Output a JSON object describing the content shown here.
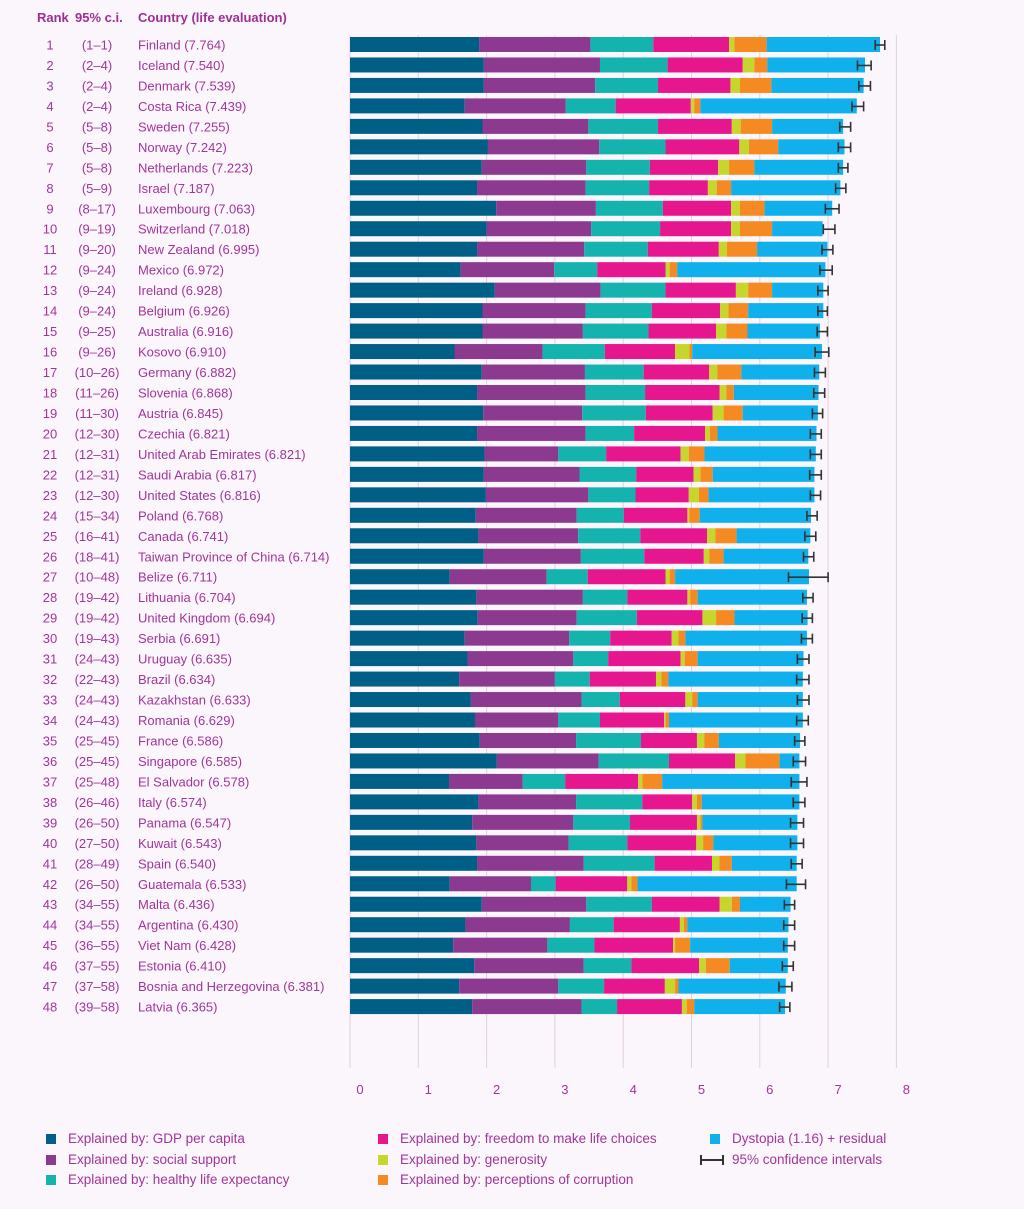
{
  "headers": {
    "rank": "Rank",
    "ci": "95% c.i.",
    "country": "Country (life evaluation)"
  },
  "colors": {
    "gdp": "#005f86",
    "social": "#8b3a8f",
    "health": "#14b3ad",
    "freedom": "#e6168f",
    "generosity": "#c6d62d",
    "corruption": "#f58a22",
    "dystopia": "#0fb0ec",
    "ci": "#333333"
  },
  "legend": [
    {
      "key": "gdp",
      "label": "Explained by: GDP per capita"
    },
    {
      "key": "social",
      "label": "Explained by: social support"
    },
    {
      "key": "health",
      "label": "Explained by: healthy life expectancy"
    },
    {
      "key": "freedom",
      "label": "Explained by: freedom to make life choices"
    },
    {
      "key": "generosity",
      "label": "Explained by: generosity"
    },
    {
      "key": "corruption",
      "label": "Explained by: perceptions of corruption"
    },
    {
      "key": "dystopia",
      "label": "Dystopia (1.16) + residual"
    },
    {
      "key": "ci",
      "label": "95% confidence intervals"
    }
  ],
  "chart_data": {
    "type": "bar",
    "orientation": "horizontal",
    "stacked": true,
    "xlim": [
      0,
      8
    ],
    "x_ticks": [
      "0",
      "1",
      "2",
      "3",
      "4",
      "5",
      "6",
      "7",
      "8"
    ],
    "series_order": [
      "gdp",
      "social",
      "health",
      "freedom",
      "generosity",
      "corruption",
      "dystopia"
    ],
    "rows": [
      {
        "rank": "1",
        "ci": "(1–1)",
        "country": "Finland (7.764)",
        "score": 7.764,
        "ci_low": 7.69,
        "ci_high": 7.83,
        "gdp": 1.89,
        "social": 1.63,
        "health": 0.92,
        "freedom": 1.11,
        "generosity": 0.08,
        "corruption": 0.47,
        "dystopia": 1.66
      },
      {
        "rank": "2",
        "ci": "(2–4)",
        "country": "Iceland (7.540)",
        "score": 7.54,
        "ci_low": 7.43,
        "ci_high": 7.63,
        "gdp": 1.96,
        "social": 1.7,
        "health": 0.99,
        "freedom": 1.1,
        "generosity": 0.17,
        "corruption": 0.19,
        "dystopia": 1.43
      },
      {
        "rank": "3",
        "ci": "(2–4)",
        "country": "Denmark (7.539)",
        "score": 7.539,
        "ci_low": 7.45,
        "ci_high": 7.62,
        "gdp": 1.96,
        "social": 1.63,
        "health": 0.92,
        "freedom": 1.06,
        "generosity": 0.14,
        "corruption": 0.46,
        "dystopia": 1.35
      },
      {
        "rank": "4",
        "ci": "(2–4)",
        "country": "Costa Rica (7.439)",
        "score": 7.439,
        "ci_low": 7.35,
        "ci_high": 7.52,
        "gdp": 1.68,
        "social": 1.48,
        "health": 0.73,
        "freedom": 1.1,
        "generosity": 0.05,
        "corruption": 0.09,
        "dystopia": 2.29
      },
      {
        "rank": "5",
        "ci": "(5–8)",
        "country": "Sweden (7.255)",
        "score": 7.255,
        "ci_low": 7.17,
        "ci_high": 7.33,
        "gdp": 1.94,
        "social": 1.55,
        "health": 1.02,
        "freedom": 1.08,
        "generosity": 0.13,
        "corruption": 0.46,
        "dystopia": 1.04
      },
      {
        "rank": "6",
        "ci": "(5–8)",
        "country": "Norway (7.242)",
        "score": 7.242,
        "ci_low": 7.15,
        "ci_high": 7.33,
        "gdp": 2.02,
        "social": 1.63,
        "health": 0.97,
        "freedom": 1.08,
        "generosity": 0.14,
        "corruption": 0.43,
        "dystopia": 0.97
      },
      {
        "rank": "7",
        "ci": "(5–8)",
        "country": "Netherlands (7.223)",
        "score": 7.223,
        "ci_low": 7.15,
        "ci_high": 7.29,
        "gdp": 1.93,
        "social": 1.53,
        "health": 0.93,
        "freedom": 1.0,
        "generosity": 0.16,
        "corruption": 0.37,
        "dystopia": 1.3
      },
      {
        "rank": "8",
        "ci": "(5–9)",
        "country": "Israel (7.187)",
        "score": 7.187,
        "ci_low": 7.11,
        "ci_high": 7.26,
        "gdp": 1.86,
        "social": 1.59,
        "health": 0.93,
        "freedom": 0.86,
        "generosity": 0.13,
        "corruption": 0.21,
        "dystopia": 1.6
      },
      {
        "rank": "9",
        "ci": "(8–17)",
        "country": "Luxembourg (7.063)",
        "score": 7.063,
        "ci_low": 6.96,
        "ci_high": 7.16,
        "gdp": 2.14,
        "social": 1.46,
        "health": 0.98,
        "freedom": 1.0,
        "generosity": 0.13,
        "corruption": 0.36,
        "dystopia": 0.99
      },
      {
        "rank": "10",
        "ci": "(9–19)",
        "country": "Switzerland (7.018)",
        "score": 7.018,
        "ci_low": 6.93,
        "ci_high": 7.1,
        "gdp": 2.0,
        "social": 1.53,
        "health": 1.01,
        "freedom": 1.04,
        "generosity": 0.13,
        "corruption": 0.47,
        "dystopia": 0.74
      },
      {
        "rank": "11",
        "ci": "(9–20)",
        "country": "New Zealand (6.995)",
        "score": 6.995,
        "ci_low": 6.91,
        "ci_high": 7.07,
        "gdp": 1.86,
        "social": 1.57,
        "health": 0.93,
        "freedom": 1.04,
        "generosity": 0.12,
        "corruption": 0.44,
        "dystopia": 1.03
      },
      {
        "rank": "12",
        "ci": "(9–24)",
        "country": "Mexico (6.972)",
        "score": 6.972,
        "ci_low": 6.88,
        "ci_high": 7.06,
        "gdp": 1.62,
        "social": 1.37,
        "health": 0.63,
        "freedom": 1.0,
        "generosity": 0.06,
        "corruption": 0.11,
        "dystopia": 2.17
      },
      {
        "rank": "13",
        "ci": "(9–24)",
        "country": "Ireland (6.928)",
        "score": 6.928,
        "ci_low": 6.85,
        "ci_high": 7.0,
        "gdp": 2.12,
        "social": 1.55,
        "health": 0.95,
        "freedom": 1.03,
        "generosity": 0.18,
        "corruption": 0.35,
        "dystopia": 0.75
      },
      {
        "rank": "14",
        "ci": "(9–24)",
        "country": "Belgium (6.926)",
        "score": 6.926,
        "ci_low": 6.85,
        "ci_high": 6.99,
        "gdp": 1.94,
        "social": 1.51,
        "health": 0.97,
        "freedom": 1.0,
        "generosity": 0.12,
        "corruption": 0.29,
        "dystopia": 1.1
      },
      {
        "rank": "15",
        "ci": "(9–25)",
        "country": "Australia (6.916)",
        "score": 6.916,
        "ci_low": 6.84,
        "ci_high": 6.99,
        "gdp": 1.94,
        "social": 1.47,
        "health": 0.96,
        "freedom": 0.99,
        "generosity": 0.15,
        "corruption": 0.31,
        "dystopia": 1.06
      },
      {
        "rank": "16",
        "ci": "(9–26)",
        "country": "Kosovo (6.910)",
        "score": 6.91,
        "ci_low": 6.81,
        "ci_high": 7.01,
        "gdp": 1.53,
        "social": 1.29,
        "health": 0.91,
        "freedom": 1.03,
        "generosity": 0.21,
        "corruption": 0.04,
        "dystopia": 1.9
      },
      {
        "rank": "17",
        "ci": "(10–26)",
        "country": "Germany (6.882)",
        "score": 6.882,
        "ci_low": 6.8,
        "ci_high": 6.96,
        "gdp": 1.93,
        "social": 1.51,
        "health": 0.86,
        "freedom": 0.96,
        "generosity": 0.12,
        "corruption": 0.35,
        "dystopia": 1.14
      },
      {
        "rank": "18",
        "ci": "(11–26)",
        "country": "Slovenia (6.868)",
        "score": 6.868,
        "ci_low": 6.79,
        "ci_high": 6.95,
        "gdp": 1.86,
        "social": 1.59,
        "health": 0.87,
        "freedom": 1.09,
        "generosity": 0.1,
        "corruption": 0.11,
        "dystopia": 1.24
      },
      {
        "rank": "19",
        "ci": "(11–30)",
        "country": "Austria (6.845)",
        "score": 6.845,
        "ci_low": 6.77,
        "ci_high": 6.92,
        "gdp": 1.95,
        "social": 1.45,
        "health": 0.93,
        "freedom": 0.98,
        "generosity": 0.16,
        "corruption": 0.28,
        "dystopia": 1.1
      },
      {
        "rank": "20",
        "ci": "(12–30)",
        "country": "Czechia (6.821)",
        "score": 6.821,
        "ci_low": 6.74,
        "ci_high": 6.9,
        "gdp": 1.86,
        "social": 1.59,
        "health": 0.71,
        "freedom": 1.04,
        "generosity": 0.07,
        "corruption": 0.11,
        "dystopia": 1.45
      },
      {
        "rank": "21",
        "ci": "(12–31)",
        "country": "United Arab Emirates (6.821)",
        "score": 6.821,
        "ci_low": 6.74,
        "ci_high": 6.9,
        "gdp": 1.97,
        "social": 1.08,
        "health": 0.7,
        "freedom": 1.09,
        "generosity": 0.12,
        "corruption": 0.23,
        "dystopia": 1.63
      },
      {
        "rank": "22",
        "ci": "(12–31)",
        "country": "Saudi Arabia (6.817)",
        "score": 6.817,
        "ci_low": 6.73,
        "ci_high": 6.9,
        "gdp": 1.96,
        "social": 1.4,
        "health": 0.83,
        "freedom": 0.84,
        "generosity": 0.1,
        "corruption": 0.18,
        "dystopia": 1.49
      },
      {
        "rank": "23",
        "ci": "(12–30)",
        "country": "United States (6.816)",
        "score": 6.816,
        "ci_low": 6.74,
        "ci_high": 6.89,
        "gdp": 1.99,
        "social": 1.5,
        "health": 0.69,
        "freedom": 0.78,
        "generosity": 0.15,
        "corruption": 0.14,
        "dystopia": 1.55
      },
      {
        "rank": "24",
        "ci": "(15–34)",
        "country": "Poland (6.768)",
        "score": 6.768,
        "ci_low": 6.69,
        "ci_high": 6.84,
        "gdp": 1.84,
        "social": 1.48,
        "health": 0.69,
        "freedom": 0.93,
        "generosity": 0.03,
        "corruption": 0.15,
        "dystopia": 1.63
      },
      {
        "rank": "25",
        "ci": "(16–41)",
        "country": "Canada (6.741)",
        "score": 6.741,
        "ci_low": 6.66,
        "ci_high": 6.82,
        "gdp": 1.88,
        "social": 1.46,
        "health": 0.91,
        "freedom": 0.98,
        "generosity": 0.12,
        "corruption": 0.31,
        "dystopia": 1.08
      },
      {
        "rank": "26",
        "ci": "(18–41)",
        "country": "Taiwan Province of China (6.714)",
        "score": 6.714,
        "ci_low": 6.64,
        "ci_high": 6.79,
        "gdp": 1.96,
        "social": 1.42,
        "health": 0.93,
        "freedom": 0.87,
        "generosity": 0.08,
        "corruption": 0.21,
        "dystopia": 1.24
      },
      {
        "rank": "27",
        "ci": "(10–48)",
        "country": "Belize (6.711)",
        "score": 6.711,
        "ci_low": 6.42,
        "ci_high": 7.0,
        "gdp": 1.46,
        "social": 1.42,
        "health": 0.6,
        "freedom": 1.14,
        "generosity": 0.06,
        "corruption": 0.08,
        "dystopia": 1.96
      },
      {
        "rank": "28",
        "ci": "(19–42)",
        "country": "Lithuania (6.704)",
        "score": 6.704,
        "ci_low": 6.63,
        "ci_high": 6.78,
        "gdp": 1.85,
        "social": 1.56,
        "health": 0.65,
        "freedom": 0.88,
        "generosity": 0.04,
        "corruption": 0.11,
        "dystopia": 1.6
      },
      {
        "rank": "29",
        "ci": "(19–42)",
        "country": "United Kingdom (6.694)",
        "score": 6.694,
        "ci_low": 6.62,
        "ci_high": 6.77,
        "gdp": 1.87,
        "social": 1.45,
        "health": 0.88,
        "freedom": 0.96,
        "generosity": 0.2,
        "corruption": 0.27,
        "dystopia": 1.07
      },
      {
        "rank": "30",
        "ci": "(19–43)",
        "country": "Serbia (6.691)",
        "score": 6.691,
        "ci_low": 6.61,
        "ci_high": 6.77,
        "gdp": 1.68,
        "social": 1.53,
        "health": 0.6,
        "freedom": 0.9,
        "generosity": 0.1,
        "corruption": 0.1,
        "dystopia": 1.78
      },
      {
        "rank": "31",
        "ci": "(24–43)",
        "country": "Uruguay (6.635)",
        "score": 6.635,
        "ci_low": 6.55,
        "ci_high": 6.72,
        "gdp": 1.72,
        "social": 1.55,
        "health": 0.51,
        "freedom": 1.06,
        "generosity": 0.06,
        "corruption": 0.19,
        "dystopia": 1.55
      },
      {
        "rank": "32",
        "ci": "(22–43)",
        "country": "Brazil (6.634)",
        "score": 6.634,
        "ci_low": 6.54,
        "ci_high": 6.72,
        "gdp": 1.6,
        "social": 1.4,
        "health": 0.51,
        "freedom": 0.97,
        "generosity": 0.08,
        "corruption": 0.1,
        "dystopia": 1.97
      },
      {
        "rank": "33",
        "ci": "(24–43)",
        "country": "Kazakhstan (6.633)",
        "score": 6.633,
        "ci_low": 6.55,
        "ci_high": 6.72,
        "gdp": 1.77,
        "social": 1.62,
        "health": 0.56,
        "freedom": 0.96,
        "generosity": 0.1,
        "corruption": 0.08,
        "dystopia": 1.54
      },
      {
        "rank": "34",
        "ci": "(24–43)",
        "country": "Romania (6.629)",
        "score": 6.629,
        "ci_low": 6.54,
        "ci_high": 6.71,
        "gdp": 1.83,
        "social": 1.22,
        "health": 0.61,
        "freedom": 0.94,
        "generosity": 0.02,
        "corruption": 0.05,
        "dystopia": 1.96
      },
      {
        "rank": "35",
        "ci": "(25–45)",
        "country": "France (6.586)",
        "score": 6.586,
        "ci_low": 6.51,
        "ci_high": 6.66,
        "gdp": 1.9,
        "social": 1.41,
        "health": 0.95,
        "freedom": 0.82,
        "generosity": 0.11,
        "corruption": 0.21,
        "dystopia": 1.19
      },
      {
        "rank": "36",
        "ci": "(25–45)",
        "country": "Singapore (6.585)",
        "score": 6.585,
        "ci_low": 6.49,
        "ci_high": 6.67,
        "gdp": 2.15,
        "social": 1.49,
        "health": 1.03,
        "freedom": 0.97,
        "generosity": 0.15,
        "corruption": 0.5,
        "dystopia": 0.29
      },
      {
        "rank": "37",
        "ci": "(25–48)",
        "country": "El Salvador (6.578)",
        "score": 6.578,
        "ci_low": 6.46,
        "ci_high": 6.69,
        "gdp": 1.45,
        "social": 1.08,
        "health": 0.62,
        "freedom": 1.07,
        "generosity": 0.06,
        "corruption": 0.29,
        "dystopia": 2.01
      },
      {
        "rank": "38",
        "ci": "(26–46)",
        "country": "Italy (6.574)",
        "score": 6.574,
        "ci_low": 6.49,
        "ci_high": 6.66,
        "gdp": 1.88,
        "social": 1.43,
        "health": 0.97,
        "freedom": 0.73,
        "generosity": 0.07,
        "corruption": 0.07,
        "dystopia": 1.43
      },
      {
        "rank": "39",
        "ci": "(26–50)",
        "country": "Panama (6.547)",
        "score": 6.547,
        "ci_low": 6.45,
        "ci_high": 6.64,
        "gdp": 1.79,
        "social": 1.48,
        "health": 0.83,
        "freedom": 0.98,
        "generosity": 0.05,
        "corruption": 0.03,
        "dystopia": 1.39
      },
      {
        "rank": "40",
        "ci": "(27–50)",
        "country": "Kuwait (6.543)",
        "score": 6.543,
        "ci_low": 6.45,
        "ci_high": 6.64,
        "gdp": 1.85,
        "social": 1.35,
        "health": 0.86,
        "freedom": 1.01,
        "generosity": 0.1,
        "corruption": 0.15,
        "dystopia": 1.23
      },
      {
        "rank": "41",
        "ci": "(28–49)",
        "country": "Spain (6.540)",
        "score": 6.54,
        "ci_low": 6.46,
        "ci_high": 6.62,
        "gdp": 1.86,
        "social": 1.56,
        "health": 1.04,
        "freedom": 0.84,
        "generosity": 0.11,
        "corruption": 0.18,
        "dystopia": 0.95
      },
      {
        "rank": "42",
        "ci": "(26–50)",
        "country": "Guatemala (6.533)",
        "score": 6.533,
        "ci_low": 6.39,
        "ci_high": 6.67,
        "gdp": 1.46,
        "social": 1.19,
        "health": 0.36,
        "freedom": 1.05,
        "generosity": 0.06,
        "corruption": 0.09,
        "dystopia": 2.33
      },
      {
        "rank": "43",
        "ci": "(34–55)",
        "country": "Malta (6.436)",
        "score": 6.436,
        "ci_low": 6.36,
        "ci_high": 6.51,
        "gdp": 1.93,
        "social": 1.53,
        "health": 0.96,
        "freedom": 0.99,
        "generosity": 0.18,
        "corruption": 0.12,
        "dystopia": 0.74
      },
      {
        "rank": "44",
        "ci": "(34–55)",
        "country": "Argentina (6.430)",
        "score": 6.43,
        "ci_low": 6.35,
        "ci_high": 6.51,
        "gdp": 1.69,
        "social": 1.53,
        "health": 0.64,
        "freedom": 0.97,
        "generosity": 0.06,
        "corruption": 0.05,
        "dystopia": 1.48
      },
      {
        "rank": "45",
        "ci": "(36–55)",
        "country": "Viet Nam (6.428)",
        "score": 6.428,
        "ci_low": 6.35,
        "ci_high": 6.51,
        "gdp": 1.51,
        "social": 1.38,
        "health": 0.69,
        "freedom": 1.15,
        "generosity": 0.03,
        "corruption": 0.22,
        "dystopia": 1.43
      },
      {
        "rank": "46",
        "ci": "(37–55)",
        "country": "Estonia (6.410)",
        "score": 6.41,
        "ci_low": 6.33,
        "ci_high": 6.49,
        "gdp": 1.82,
        "social": 1.6,
        "health": 0.7,
        "freedom": 0.99,
        "generosity": 0.1,
        "corruption": 0.35,
        "dystopia": 0.85
      },
      {
        "rank": "47",
        "ci": "(37–58)",
        "country": "Bosnia and Herzegovina (6.381)",
        "score": 6.381,
        "ci_low": 6.28,
        "ci_high": 6.47,
        "gdp": 1.6,
        "social": 1.45,
        "health": 0.67,
        "freedom": 0.89,
        "generosity": 0.15,
        "corruption": 0.05,
        "dystopia": 1.57
      },
      {
        "rank": "48",
        "ci": "(39–58)",
        "country": "Latvia (6.365)",
        "score": 6.365,
        "ci_low": 6.29,
        "ci_high": 6.44,
        "gdp": 1.79,
        "social": 1.6,
        "health": 0.52,
        "freedom": 0.95,
        "generosity": 0.07,
        "corruption": 0.11,
        "dystopia": 1.33
      }
    ]
  }
}
